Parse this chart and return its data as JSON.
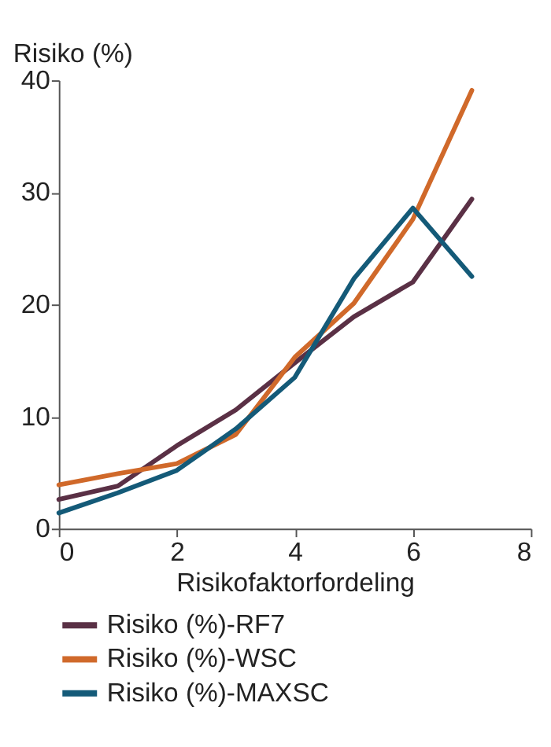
{
  "chart_data": {
    "type": "line",
    "xlabel": "Risikofaktorfordeling",
    "ylabel": "Risiko (%)",
    "x": [
      0,
      1,
      2,
      3,
      4,
      5,
      6,
      7
    ],
    "xlim": [
      0,
      8
    ],
    "xticks": [
      0,
      2,
      4,
      6,
      8
    ],
    "ylim": [
      0,
      40
    ],
    "yticks": [
      0,
      10,
      20,
      30,
      40
    ],
    "grid": false,
    "legend": "bottom",
    "marker": "none",
    "line_style": "solid",
    "series": [
      {
        "name": "Risiko (%)-RF7",
        "color": "#5a3045",
        "values": [
          2.6,
          3.8,
          7.4,
          10.6,
          14.8,
          18.9,
          22.0,
          29.4
        ]
      },
      {
        "name": "Risiko (%)-WSC",
        "color": "#d0692a",
        "values": [
          3.9,
          4.9,
          5.8,
          8.4,
          15.3,
          20.1,
          27.6,
          39.1
        ]
      },
      {
        "name": "Risiko (%)-MAXSC",
        "color": "#145a78",
        "values": [
          1.4,
          3.2,
          5.2,
          8.9,
          13.5,
          22.3,
          28.6,
          22.5
        ]
      }
    ]
  }
}
